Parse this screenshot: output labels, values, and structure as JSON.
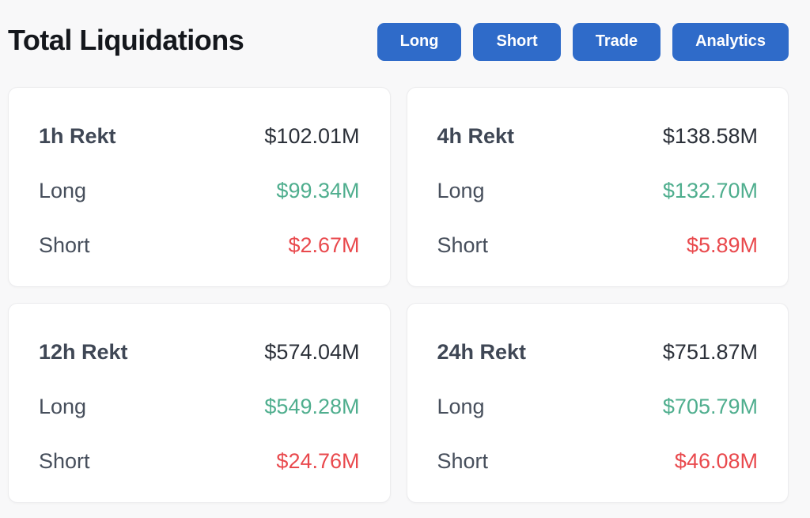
{
  "header": {
    "title": "Total Liquidations",
    "buttons": [
      {
        "label": "Long"
      },
      {
        "label": "Short"
      },
      {
        "label": "Trade"
      },
      {
        "label": "Analytics"
      }
    ]
  },
  "cards": [
    {
      "period": "1h Rekt",
      "total": "$102.01M",
      "long_label": "Long",
      "long_value": "$99.34M",
      "short_label": "Short",
      "short_value": "$2.67M"
    },
    {
      "period": "4h Rekt",
      "total": "$138.58M",
      "long_label": "Long",
      "long_value": "$132.70M",
      "short_label": "Short",
      "short_value": "$5.89M"
    },
    {
      "period": "12h Rekt",
      "total": "$574.04M",
      "long_label": "Long",
      "long_value": "$549.28M",
      "short_label": "Short",
      "short_value": "$24.76M"
    },
    {
      "period": "24h Rekt",
      "total": "$751.87M",
      "long_label": "Long",
      "long_value": "$705.79M",
      "short_label": "Short",
      "short_value": "$46.08M"
    }
  ],
  "colors": {
    "accent": "#2f6bc9",
    "green": "#4fae8e",
    "red": "#e9494d",
    "title": "#14171c",
    "page_bg": "#f8f8f9",
    "card_bg": "#ffffff"
  }
}
